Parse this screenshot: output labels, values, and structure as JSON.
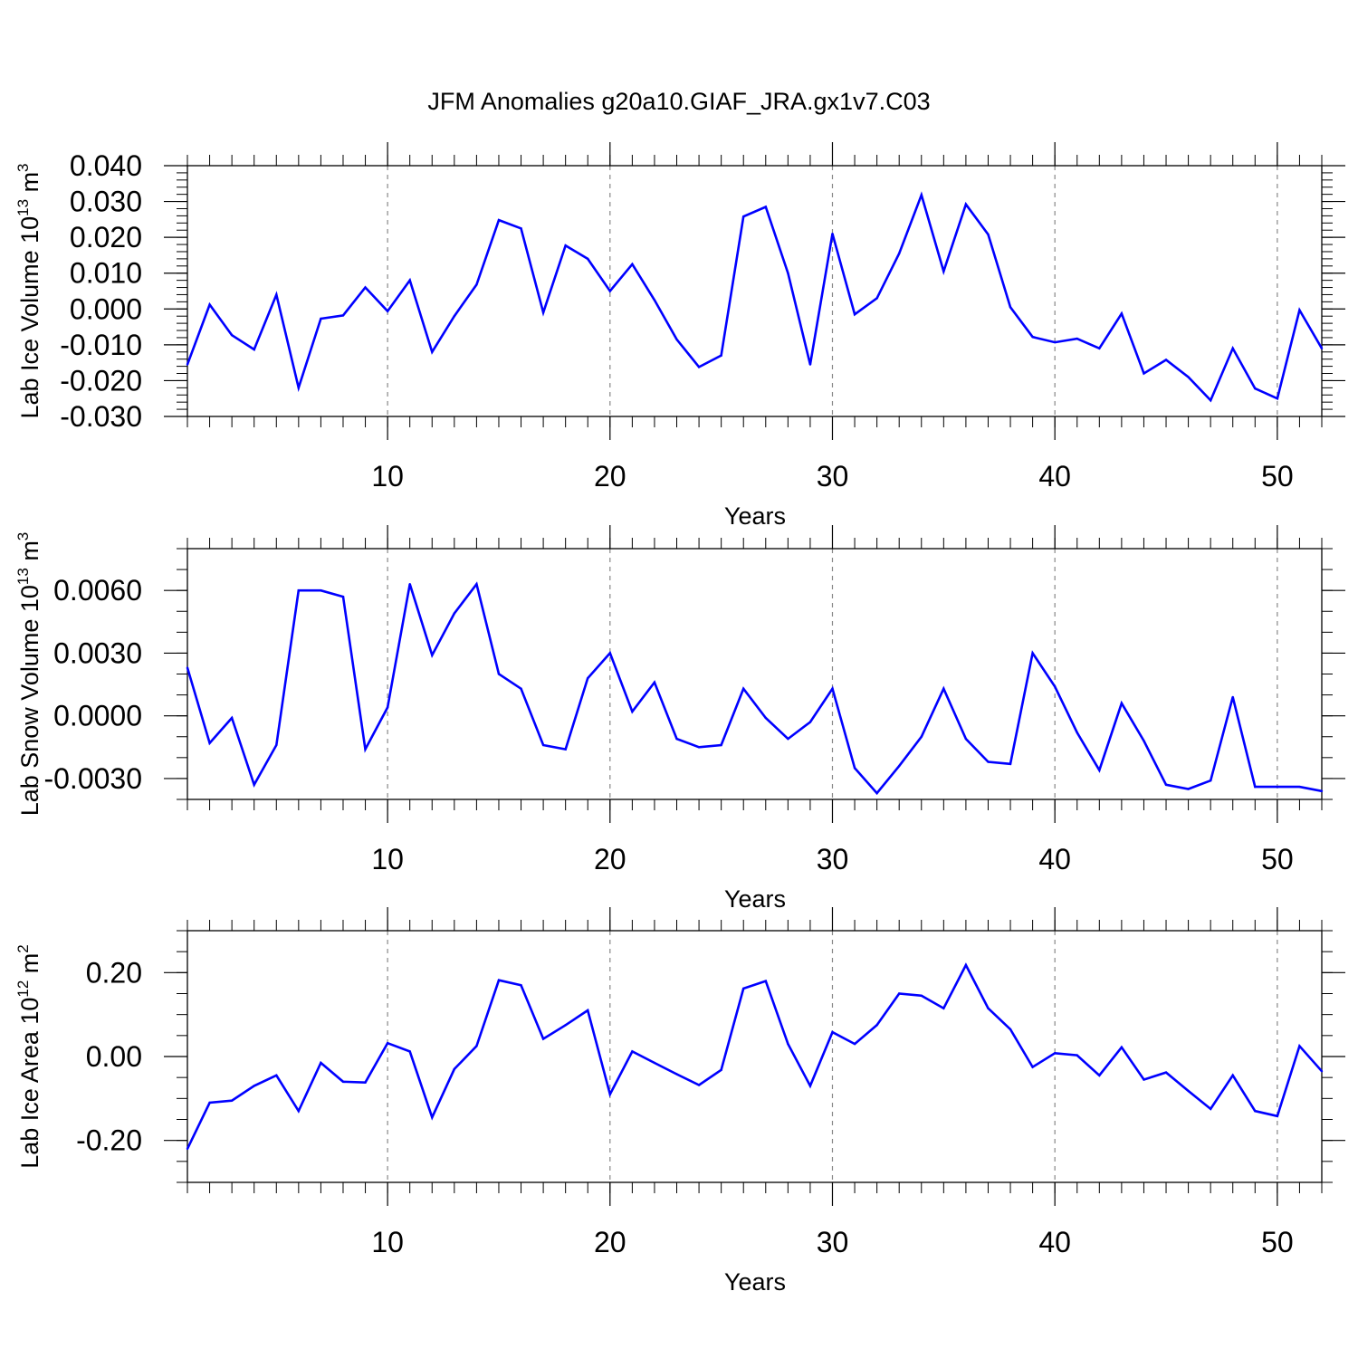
{
  "title": "JFM Anomalies g20a10.GIAF_JRA.gx1v7.C03",
  "line_color": "#0000ff",
  "chart_data": [
    {
      "type": "line",
      "xlabel": "Years",
      "ylabel": {
        "text": "Lab Ice Volume 10",
        "exp": "13",
        "unit": " m",
        "unit_exp": "3"
      },
      "xlim": [
        1,
        52
      ],
      "ylim": [
        -0.03,
        0.04
      ],
      "x_ticks": [
        "10",
        "20",
        "30",
        "40",
        "50"
      ],
      "y_ticks": [
        "0.040",
        "0.030",
        "0.020",
        "0.010",
        "0.000",
        "-0.010",
        "-0.020",
        "-0.030"
      ],
      "y_tick_values": [
        0.04,
        0.03,
        0.02,
        0.01,
        0.0,
        -0.01,
        -0.02,
        -0.03
      ],
      "y_minor_step": 0.002,
      "x": [
        1,
        2,
        3,
        4,
        5,
        6,
        7,
        8,
        9,
        10,
        11,
        12,
        13,
        14,
        15,
        16,
        17,
        18,
        19,
        20,
        21,
        22,
        23,
        24,
        25,
        26,
        27,
        28,
        29,
        30,
        31,
        32,
        33,
        34,
        35,
        36,
        37,
        38,
        39,
        40,
        41,
        42,
        43,
        44,
        45,
        46,
        47,
        48,
        49,
        50,
        51,
        52
      ],
      "values": [
        -0.0155,
        0.0012,
        -0.0073,
        -0.0113,
        0.004,
        -0.022,
        -0.0027,
        -0.0018,
        0.006,
        -0.0006,
        0.008,
        -0.012,
        -0.002,
        0.0068,
        0.0248,
        0.0225,
        -0.001,
        0.0177,
        0.014,
        0.005,
        0.0125,
        0.0025,
        -0.0085,
        -0.0162,
        -0.013,
        0.0258,
        0.0285,
        0.01,
        -0.0155,
        0.021,
        -0.0015,
        0.003,
        0.0155,
        0.0318,
        0.0105,
        0.0292,
        0.0208,
        0.0005,
        -0.0078,
        -0.0093,
        -0.0083,
        -0.011,
        -0.0013,
        -0.018,
        -0.0142,
        -0.019,
        -0.0255,
        -0.011,
        -0.0222,
        -0.025,
        -0.0003,
        -0.011
      ]
    },
    {
      "type": "line",
      "xlabel": "Years",
      "ylabel": {
        "text": "Lab Snow Volume 10",
        "exp": "13",
        "unit": " m",
        "unit_exp": "3"
      },
      "xlim": [
        1,
        52
      ],
      "ylim": [
        -0.004,
        0.008
      ],
      "x_ticks": [
        "10",
        "20",
        "30",
        "40",
        "50"
      ],
      "y_ticks": [
        "0.0060",
        "0.0030",
        "0.0000",
        "-0.0030"
      ],
      "y_tick_values": [
        0.006,
        0.003,
        0.0,
        -0.003
      ],
      "y_minor_step": 0.001,
      "x": [
        1,
        2,
        3,
        4,
        5,
        6,
        7,
        8,
        9,
        10,
        11,
        12,
        13,
        14,
        15,
        16,
        17,
        18,
        19,
        20,
        21,
        22,
        23,
        24,
        25,
        26,
        27,
        28,
        29,
        30,
        31,
        32,
        33,
        34,
        35,
        36,
        37,
        38,
        39,
        40,
        41,
        42,
        43,
        44,
        45,
        46,
        47,
        48,
        49,
        50,
        51,
        52
      ],
      "values": [
        0.0023,
        -0.0013,
        -0.0001,
        -0.0033,
        -0.0014,
        0.006,
        0.006,
        0.0057,
        -0.0016,
        0.0004,
        0.0063,
        0.0029,
        0.0049,
        0.0063,
        0.002,
        0.0013,
        -0.0014,
        -0.0016,
        0.0018,
        0.003,
        0.0002,
        0.0016,
        -0.0011,
        -0.0015,
        -0.0014,
        0.0013,
        -0.0001,
        -0.0011,
        -0.0003,
        0.0013,
        -0.0025,
        -0.0037,
        -0.0024,
        -0.001,
        0.0013,
        -0.0011,
        -0.0022,
        -0.0023,
        0.003,
        0.0014,
        -0.0008,
        -0.0026,
        0.0006,
        -0.0012,
        -0.0033,
        -0.0035,
        -0.0031,
        0.0009,
        -0.0034,
        -0.0034,
        -0.0034,
        -0.0036
      ]
    },
    {
      "type": "line",
      "xlabel": "Years",
      "ylabel": {
        "text": "Lab Ice Area 10",
        "exp": "12",
        "unit": " m",
        "unit_exp": "2"
      },
      "xlim": [
        1,
        52
      ],
      "ylim": [
        -0.3,
        0.3
      ],
      "x_ticks": [
        "10",
        "20",
        "30",
        "40",
        "50"
      ],
      "y_ticks": [
        "0.20",
        "0.00",
        "-0.20"
      ],
      "y_tick_values": [
        0.2,
        0.0,
        -0.2
      ],
      "y_minor_step": 0.05,
      "x": [
        1,
        2,
        3,
        4,
        5,
        6,
        7,
        8,
        9,
        10,
        11,
        12,
        13,
        14,
        15,
        16,
        17,
        18,
        19,
        20,
        21,
        22,
        23,
        24,
        25,
        26,
        27,
        28,
        29,
        30,
        31,
        32,
        33,
        34,
        35,
        36,
        37,
        38,
        39,
        40,
        41,
        42,
        43,
        44,
        45,
        46,
        47,
        48,
        49,
        50,
        51,
        52
      ],
      "values": [
        -0.22,
        -0.11,
        -0.105,
        -0.07,
        -0.045,
        -0.13,
        -0.015,
        -0.06,
        -0.062,
        0.032,
        0.012,
        -0.145,
        -0.03,
        0.025,
        0.182,
        0.17,
        0.042,
        0.075,
        0.11,
        -0.09,
        0.012,
        -0.015,
        -0.042,
        -0.068,
        -0.032,
        0.162,
        0.18,
        0.03,
        -0.07,
        0.058,
        0.03,
        0.075,
        0.15,
        0.145,
        0.115,
        0.218,
        0.115,
        0.065,
        -0.025,
        0.008,
        0.003,
        -0.045,
        0.022,
        -0.055,
        -0.038,
        -0.082,
        -0.125,
        -0.045,
        -0.13,
        -0.142,
        0.025,
        -0.035
      ]
    }
  ]
}
